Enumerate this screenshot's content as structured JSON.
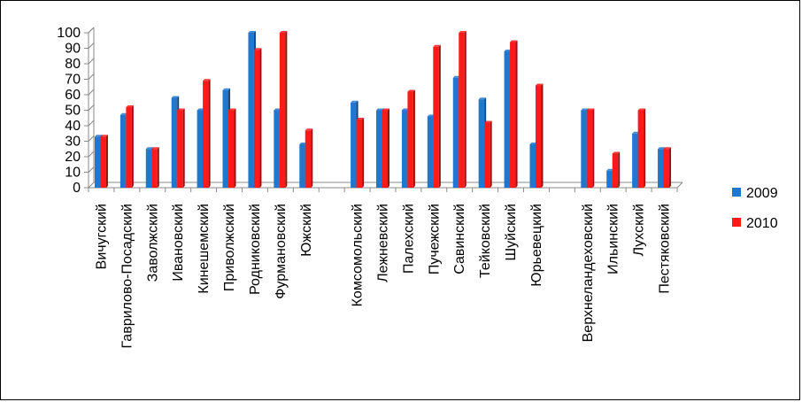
{
  "chart_data": {
    "type": "bar",
    "title": "",
    "xlabel": "",
    "ylabel": "",
    "ylim": [
      0,
      100
    ],
    "yticks": [
      0,
      10,
      20,
      30,
      40,
      50,
      60,
      70,
      80,
      90,
      100
    ],
    "grid": false,
    "legend_position": "right",
    "categories": [
      "Вичугский",
      "Гаврилово-Посадский",
      "Заволжский",
      "Ивановский",
      "Кинешемский",
      "Приволжский",
      "Родниковский",
      "Фурмановский",
      "Южский",
      "",
      "Комсомольский",
      "Лежневский",
      "Палехский",
      "Пучежский",
      "Савинский",
      "Тейковский",
      "Шуйский",
      "Юрьевецкий",
      "",
      "Верхнеландеховский",
      "Ильинский",
      "Лухский",
      "Пестяковский"
    ],
    "series": [
      {
        "name": "2009",
        "color": "#1F77D0",
        "values": [
          33,
          47,
          25,
          58,
          50,
          63,
          100,
          50,
          28,
          null,
          55,
          50,
          50,
          46,
          71,
          57,
          88,
          28,
          null,
          50,
          11,
          35,
          25
        ]
      },
      {
        "name": "2010",
        "color": "#FF1A1A",
        "values": [
          33,
          52,
          25,
          50,
          69,
          50,
          89,
          100,
          37,
          null,
          44,
          50,
          62,
          91,
          100,
          42,
          94,
          66,
          null,
          50,
          22,
          50,
          25
        ]
      }
    ]
  }
}
